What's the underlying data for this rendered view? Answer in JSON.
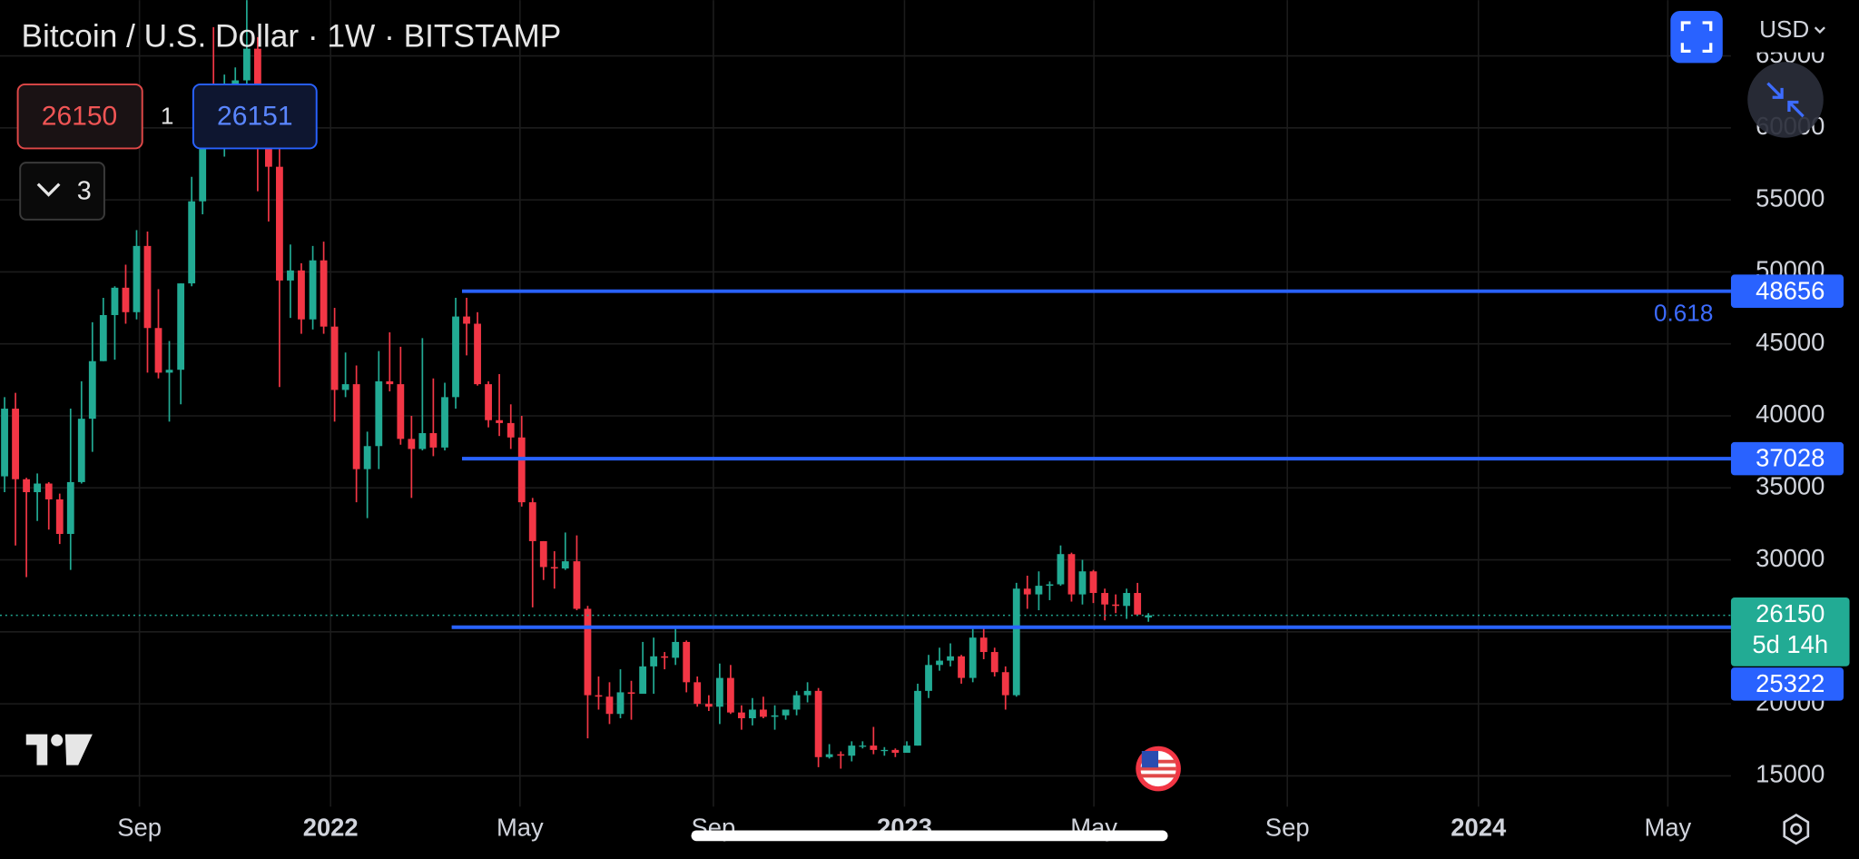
{
  "header": {
    "title": "Bitcoin / U.S. Dollar · 1W · BITSTAMP",
    "currency": "USD"
  },
  "trade": {
    "sell": 26150,
    "spread": 1,
    "buy": 26151
  },
  "indicators": {
    "count": 3
  },
  "chart_data": {
    "type": "candlestick",
    "x": [
      2021.432,
      2021.451,
      2021.47,
      2021.489,
      2021.509,
      2021.528,
      2021.547,
      2021.566,
      2021.585,
      2021.604,
      2021.624,
      2021.643,
      2021.662,
      2021.681,
      2021.7,
      2021.719,
      2021.739,
      2021.758,
      2021.777,
      2021.796,
      2021.815,
      2021.834,
      2021.854,
      2021.873,
      2021.892,
      2021.911,
      2021.93,
      2021.949,
      2021.969,
      2021.988,
      2022.007,
      2022.026,
      2022.045,
      2022.064,
      2022.084,
      2022.103,
      2022.122,
      2022.141,
      2022.16,
      2022.179,
      2022.199,
      2022.218,
      2022.237,
      2022.256,
      2022.275,
      2022.294,
      2022.314,
      2022.333,
      2022.352,
      2022.371,
      2022.39,
      2022.409,
      2022.429,
      2022.448,
      2022.467,
      2022.486,
      2022.505,
      2022.524,
      2022.544,
      2022.563,
      2022.582,
      2022.601,
      2022.62,
      2022.639,
      2022.659,
      2022.678,
      2022.697,
      2022.716,
      2022.735,
      2022.754,
      2022.774,
      2022.793,
      2022.812,
      2022.831,
      2022.85,
      2022.869,
      2022.889,
      2022.908,
      2022.927,
      2022.946,
      2022.965,
      2022.984,
      2023.004,
      2023.023,
      2023.042,
      2023.061,
      2023.08,
      2023.099,
      2023.119,
      2023.138,
      2023.157,
      2023.176,
      2023.195,
      2023.214,
      2023.234,
      2023.253,
      2023.272,
      2023.291,
      2023.31,
      2023.329,
      2023.349,
      2023.368,
      2023.387,
      2023.406,
      2023.425
    ],
    "open": [
      35800,
      40500,
      35600,
      34700,
      35300,
      34200,
      31800,
      35400,
      39800,
      43800,
      47000,
      48900,
      47200,
      51800,
      46100,
      43000,
      43200,
      49200,
      54900,
      61500,
      60800,
      61300,
      63300,
      65500,
      59000,
      57300,
      49400,
      50100,
      46700,
      50800,
      46200,
      41800,
      42200,
      36300,
      37900,
      42400,
      42200,
      38400,
      37700,
      38800,
      37800,
      41300,
      46900,
      46400,
      42200,
      39700,
      39500,
      38500,
      34000,
      31300,
      29500,
      29400,
      29900,
      26600,
      20600,
      20500,
      19300,
      20800,
      20700,
      22600,
      23300,
      23200,
      24300,
      21500,
      20000,
      19800,
      21800,
      19400,
      19000,
      19600,
      19100,
      19200,
      19600,
      20600,
      20900,
      16300,
      16500,
      16400,
      17100,
      17100,
      16800,
      16800,
      16600,
      17100,
      20900,
      22700,
      23000,
      23300,
      21800,
      24600,
      23600,
      22200,
      20600,
      28000,
      27600,
      28200,
      28300,
      30400,
      27600,
      29200,
      27700,
      26900,
      26800,
      27700,
      26000
    ],
    "high": [
      41300,
      41600,
      35700,
      36000,
      35400,
      34600,
      40500,
      42400,
      46500,
      48200,
      49000,
      50500,
      52900,
      52800,
      48800,
      45200,
      49200,
      56600,
      62000,
      67000,
      63700,
      64200,
      69000,
      66300,
      59400,
      59200,
      51900,
      50600,
      51800,
      52100,
      47500,
      44400,
      43500,
      38900,
      44500,
      45800,
      44800,
      40000,
      45400,
      42600,
      42300,
      48200,
      48200,
      47200,
      42400,
      42900,
      40800,
      40000,
      34300,
      31300,
      30600,
      31900,
      31700,
      26800,
      21900,
      21500,
      22400,
      21600,
      24300,
      24600,
      23600,
      25200,
      24400,
      21900,
      20600,
      22800,
      22700,
      19900,
      20400,
      20500,
      19900,
      19600,
      20900,
      21500,
      21100,
      17200,
      16700,
      17400,
      17400,
      18400,
      17000,
      16900,
      17400,
      21400,
      23400,
      23900,
      24200,
      23400,
      25200,
      25300,
      23900,
      22600,
      28400,
      28900,
      29200,
      28500,
      31000,
      30500,
      30000,
      29300,
      28000,
      27600,
      28000,
      28400,
      26300
    ],
    "low": [
      34700,
      31000,
      28800,
      32700,
      32100,
      31100,
      29300,
      35300,
      37500,
      43800,
      43900,
      46400,
      46700,
      43000,
      42600,
      39600,
      40800,
      49000,
      54000,
      59800,
      58000,
      59400,
      62300,
      55600,
      53500,
      42000,
      46800,
      45700,
      46000,
      45700,
      39600,
      41300,
      34000,
      32900,
      36300,
      41700,
      38000,
      34300,
      37600,
      37200,
      37600,
      40500,
      44200,
      42100,
      39200,
      38600,
      37700,
      33700,
      26700,
      28600,
      28000,
      29300,
      26500,
      17600,
      19600,
      18600,
      19000,
      18900,
      20700,
      20700,
      22400,
      22700,
      20800,
      19800,
      19500,
      18600,
      19300,
      18200,
      18500,
      19000,
      18200,
      18900,
      19200,
      20100,
      15600,
      16200,
      15500,
      16000,
      16900,
      16500,
      16400,
      16300,
      16600,
      17100,
      20400,
      22300,
      22600,
      21400,
      21500,
      23100,
      21900,
      19600,
      20500,
      26600,
      26500,
      27200,
      28200,
      27100,
      26900,
      27000,
      25800,
      26300,
      25900,
      26200,
      25700
    ],
    "close": [
      40500,
      35600,
      34700,
      35300,
      34200,
      31800,
      35400,
      39800,
      43800,
      47000,
      48900,
      47200,
      51800,
      46100,
      43000,
      43200,
      49200,
      54900,
      61500,
      60800,
      61300,
      63300,
      65500,
      59000,
      57300,
      49400,
      50100,
      46700,
      50800,
      46200,
      41800,
      42200,
      36300,
      37900,
      42400,
      42200,
      38400,
      37700,
      38800,
      37800,
      41300,
      46900,
      46400,
      42200,
      39700,
      39500,
      38500,
      34000,
      31300,
      29500,
      29400,
      29900,
      26600,
      20600,
      20500,
      19300,
      20800,
      20700,
      22600,
      23300,
      23200,
      24300,
      21500,
      20000,
      19800,
      21800,
      19400,
      19000,
      19600,
      19100,
      19200,
      19600,
      20600,
      20900,
      16300,
      16500,
      16400,
      17100,
      17100,
      16800,
      16800,
      16600,
      17100,
      20900,
      22700,
      23000,
      23300,
      21800,
      24600,
      23600,
      22200,
      20600,
      28000,
      27600,
      28200,
      28300,
      30400,
      27600,
      29200,
      27700,
      26900,
      26800,
      27700,
      26200,
      26150
    ],
    "up_color": "#22ab94",
    "down_color": "#f23645",
    "xlim": [
      2021.424,
      2024.44
    ],
    "xticks": [
      {
        "value": 2021.667,
        "label": "Sep"
      },
      2022,
      {
        "value": 2022.33,
        "label": "May"
      },
      {
        "value": 2022.667,
        "label": "Sep"
      },
      2023,
      {
        "value": 2023.33,
        "label": "May"
      },
      {
        "value": 2023.667,
        "label": "Sep"
      },
      2024,
      {
        "value": 2024.33,
        "label": "May"
      }
    ],
    "ylim": [
      12860,
      68870
    ],
    "yticks": [
      15000,
      20000,
      25000,
      30000,
      35000,
      40000,
      45000,
      50000,
      55000,
      60000,
      65000
    ],
    "grid": true,
    "hline_color": "#2962ff",
    "hlines": [
      {
        "value": 48656,
        "x_start": 2022.229,
        "label": "0.618"
      },
      {
        "value": 37028,
        "x_start": 2022.229
      },
      {
        "value": 25322,
        "x_start": 2022.211
      }
    ],
    "last_price": 26150,
    "countdown": "5d 14h"
  }
}
